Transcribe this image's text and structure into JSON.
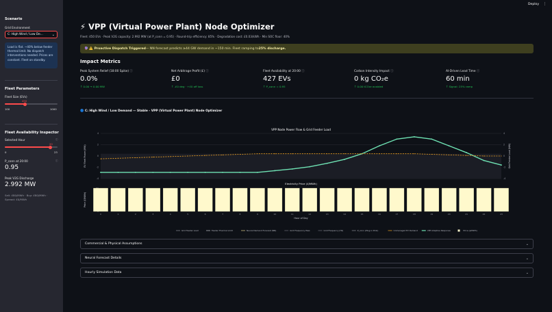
{
  "header": {
    "deploy_label": "Deploy",
    "menu_icon": "⋮"
  },
  "sidebar": {
    "scenario_heading": "Scenario",
    "grid_env_label": "Grid Environment",
    "grid_env_value": "C: High Wind / Low De...",
    "info_text": "Load is flat. ~40% below feeder thermal limit. No dispatch interventions needed. Prices are constant. Fleet on standby.",
    "fleet_params_heading": "Fleet Parameters",
    "fleet_size_label": "Fleet Size (EVs)",
    "fleet_size_value": "450",
    "fleet_size_min": "100",
    "fleet_size_max": "1000",
    "fleet_size_fraction": 0.389,
    "inspector_heading": "Fleet Availability Inspector",
    "selected_hour_label": "Selected Hour",
    "selected_hour_value": "20",
    "selected_hour_min": "0",
    "selected_hour_max": "23",
    "selected_hour_fraction": 0.87,
    "pconn_label": "P_conn at 20:00",
    "pconn_value": "0.95",
    "peak_v2g_label": "Peak V2G Discharge",
    "peak_v2g_value": "2.992 MW",
    "price_text": "Sell: £80/MWh · Buy: £80/MWh · Spread: £0/MWh"
  },
  "main": {
    "title_icon": "⚡",
    "title": "VPP (Virtual Power Plant) Node Optimizer",
    "subtitle": "Fleet: 450 EVs · Peak V2G capacity: 2.992 MW (at P_conn = 0.95) · Round-trip efficiency: 85% · Degradation cost: £0.03/kWh · Min SOC floor: 40%",
    "alert_prefix": "🔮 ⚠️ Proactive Dispatch Triggered",
    "alert_text": " — NN forecast predicts ≥44 GW demand in ~150 min. Fleet ramping to ",
    "alert_bold": "25% discharge.",
    "impact_heading": "Impact Metrics",
    "metrics": [
      {
        "label": "Peak System Relief (18:00 Spike)",
        "value": "0.0%",
        "delta": "↑ 0.00 → 0.00 MW"
      },
      {
        "label": "Net Arbitrage Profit (£)",
        "value": "£0",
        "delta": "↑ -£0 deg · +£0 off loss"
      },
      {
        "label": "Fleet Availability at 20:00",
        "value": "427 EVs",
        "delta": "↑ P_conn = 0.95"
      },
      {
        "label": "Carbon Intensity Impact",
        "value": "0 kg CO₂e",
        "delta": "↑ 0.00 tCO₂e avoided"
      },
      {
        "label": "AI-Driven Lead Time",
        "value": "60 min",
        "delta": "↑ Signal: 25% ramp"
      }
    ],
    "chart_caption": "🔵 C: High Wind / Low Demand — Stable - VPP (Virtual Power Plant) Node Optimizer",
    "expanders": [
      "Commercial & Physical Assumptions",
      "Neural Forecast Details",
      "Hourly Simulation Data"
    ]
  },
  "chart_data": {
    "type": "line",
    "title": "VPP Node Power Flow & Grid Feeder Load",
    "ylabel_left": "EV Fleet Power (MW)",
    "ylabel_right": "Grid Feeder Load (MW)",
    "x": [
      0,
      1,
      2,
      3,
      4,
      5,
      6,
      7,
      8,
      9,
      10,
      11,
      12,
      13,
      14,
      15,
      16,
      17,
      18,
      19,
      20,
      21,
      22,
      23
    ],
    "top_ylim": [
      -4,
      4
    ],
    "top_yticks": [
      -4,
      -2,
      0,
      2,
      4
    ],
    "series": [
      {
        "name": "VPP Adaptive Response",
        "color": "#6fe3b4",
        "values": [
          -2.9,
          -2.9,
          -2.9,
          -2.9,
          -2.9,
          -2.9,
          -2.9,
          -2.9,
          -2.9,
          -2.9,
          -2.6,
          -2.3,
          -1.9,
          -1.3,
          -0.6,
          0.4,
          1.8,
          3.0,
          3.4,
          3.0,
          1.8,
          0.6,
          -0.8,
          -1.6
        ]
      },
      {
        "name": "Unmanaged EV Demand",
        "color": "#f5a623",
        "values": [
          -0.5,
          -0.4,
          -0.3,
          -0.2,
          -0.1,
          0,
          0.1,
          0.2,
          0.3,
          0.4,
          0.4,
          0.4,
          0.4,
          0.4,
          0.4,
          0.4,
          0.4,
          0.4,
          0.4,
          0.3,
          0.2,
          0.1,
          0,
          0
        ]
      }
    ],
    "bottom_title": "Electricity Price (£/MWh)",
    "bottom_ylabel": "Price (£/MWh)",
    "bottom_xlabel": "Hour of Day",
    "bottom_yticks": [
      0,
      20,
      40,
      60,
      80
    ],
    "price_values": [
      80,
      80,
      80,
      80,
      80,
      80,
      80,
      80,
      80,
      80,
      80,
      80,
      80,
      80,
      80,
      80,
      80,
      80,
      80,
      80,
      80,
      80,
      80,
      80
    ],
    "price_color": "#fff9cc",
    "legend": [
      "Grid Feeder Load",
      "Feeder Thermal Limit",
      "Neural Demand Forecast (NN)",
      "Grid Frequency Pass",
      "Grid Frequency (Hz)",
      "P_conn (Plug-in Prob)",
      "Unmanaged EV Demand",
      "VPP Adaptive Response",
      "Price (£/MWh)"
    ]
  }
}
